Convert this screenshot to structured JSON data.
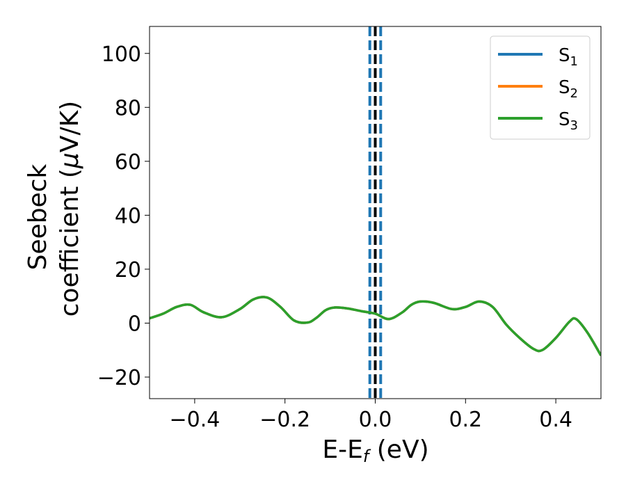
{
  "chart_data": {
    "type": "line",
    "xlabel": {
      "main": "E-E",
      "sub": "f",
      "suffix": " (eV)"
    },
    "ylabel": {
      "line1": "Seebeck",
      "line2": "coefficient  (",
      "mu": "μ",
      "unit": "V/K)"
    },
    "xlim": [
      -0.5,
      0.5
    ],
    "ylim": [
      -28,
      110
    ],
    "xticks": [
      -0.4,
      -0.2,
      0.0,
      0.2,
      0.4
    ],
    "xtick_labels": [
      "−0.4",
      "−0.2",
      "0.0",
      "0.2",
      "0.4"
    ],
    "yticks": [
      -20,
      0,
      20,
      40,
      60,
      80,
      100
    ],
    "ytick_labels": [
      "−20",
      "0",
      "20",
      "40",
      "60",
      "80",
      "100"
    ],
    "grid": false,
    "legend_position": "top-right",
    "vertical_lines": [
      {
        "x": 0.0,
        "color": "#000000",
        "style": "dashed"
      },
      {
        "x": -0.012,
        "color": "#1f77b4",
        "style": "dashed"
      },
      {
        "x": 0.012,
        "color": "#1f77b4",
        "style": "dashed"
      }
    ],
    "x": [
      -0.5,
      -0.47,
      -0.44,
      -0.41,
      -0.38,
      -0.34,
      -0.3,
      -0.27,
      -0.24,
      -0.21,
      -0.18,
      -0.15,
      -0.13,
      -0.11,
      -0.09,
      -0.06,
      -0.03,
      0.0,
      0.03,
      0.06,
      0.08,
      0.1,
      0.13,
      0.17,
      0.2,
      0.23,
      0.26,
      0.29,
      0.32,
      0.35,
      0.37,
      0.4,
      0.43,
      0.445,
      0.47,
      0.5
    ],
    "series": [
      {
        "name": "S",
        "sub": "1",
        "color": "#1f77b4",
        "values": [
          1.8,
          3.5,
          6.0,
          6.8,
          4.0,
          2.2,
          5.2,
          8.8,
          9.5,
          6.0,
          1.0,
          0.2,
          2.0,
          4.8,
          5.8,
          5.4,
          4.4,
          3.5,
          1.5,
          4.0,
          6.8,
          8.0,
          7.5,
          5.2,
          6.0,
          8.0,
          6.0,
          -0.5,
          -5.5,
          -9.5,
          -10.0,
          -5.5,
          0.5,
          1.5,
          -3.5,
          -12.0
        ]
      },
      {
        "name": "S",
        "sub": "2",
        "color": "#ff7f0e",
        "values": [
          1.8,
          3.5,
          6.0,
          6.8,
          4.0,
          2.2,
          5.2,
          8.8,
          9.5,
          6.0,
          1.0,
          0.2,
          2.0,
          4.8,
          5.8,
          5.4,
          4.4,
          3.5,
          1.5,
          4.0,
          6.8,
          8.0,
          7.5,
          5.2,
          6.0,
          8.0,
          6.0,
          -0.5,
          -5.5,
          -9.5,
          -10.0,
          -5.5,
          0.5,
          1.5,
          -3.5,
          -12.0
        ]
      },
      {
        "name": "S",
        "sub": "3",
        "color": "#2ca02c",
        "values": [
          1.8,
          3.5,
          6.0,
          6.8,
          4.0,
          2.2,
          5.2,
          8.8,
          9.5,
          6.0,
          1.0,
          0.2,
          2.0,
          4.8,
          5.8,
          5.4,
          4.4,
          3.5,
          1.5,
          4.0,
          6.8,
          8.0,
          7.5,
          5.2,
          6.0,
          8.0,
          6.0,
          -0.5,
          -5.5,
          -9.5,
          -10.0,
          -5.5,
          0.5,
          1.5,
          -3.5,
          -12.0
        ]
      }
    ]
  }
}
